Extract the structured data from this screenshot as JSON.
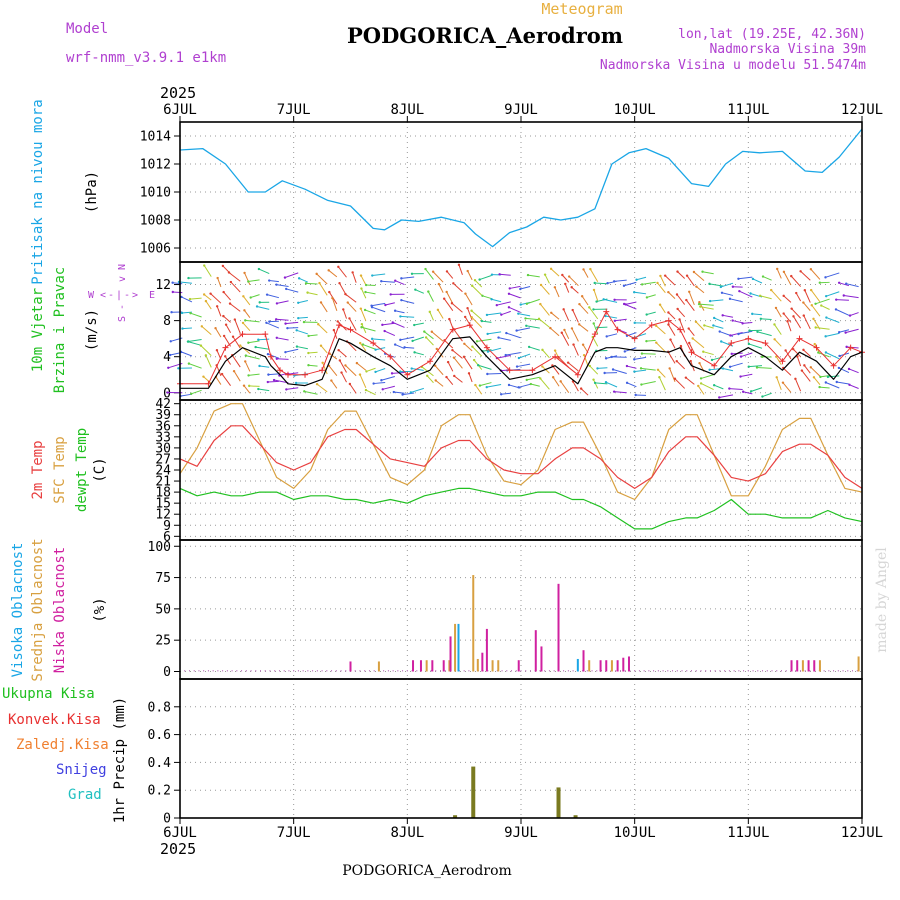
{
  "header": {
    "model_label": "Model",
    "model_name": "wrf-nmm_v3.9.1 e1km",
    "station": "PODGORICA_Aerodrom",
    "meteogram": "Meteogram",
    "lonlat": "lon,lat (19.25E, 42.36N)",
    "elevation": "Nadmorska Visina 39m",
    "model_elevation": "Nadmorska Visina u modelu 51.5474m"
  },
  "footer": {
    "station": "PODGORICA_Aerodrom",
    "signature": "made by Angel"
  },
  "time_axis": {
    "year": "2025",
    "ticks": [
      "6JUL",
      "7JUL",
      "8JUL",
      "9JUL",
      "10JUL",
      "11JUL",
      "12JUL"
    ],
    "range_days": [
      0,
      6
    ]
  },
  "colors": {
    "pressure": "#1aa6e6",
    "wind_black": "#000000",
    "wind_gust": "#e83030",
    "t2m": "#e84040",
    "tsfc": "#d8a040",
    "dew": "#20c020",
    "cloud_high": "#1aa6e6",
    "cloud_mid": "#d8a040",
    "cloud_low": "#d020a0",
    "precip_total": "#20c020",
    "precip_conv": "#e83030",
    "precip_strat": "#f08030",
    "snow": "#4040e0",
    "hail": "#20c0c0",
    "precip_bar": "#7a7a20"
  },
  "legend": {
    "pressure": "Pritisak na nivou mora",
    "pressure_unit": "(hPa)",
    "wind_1": "10m Vjetar",
    "wind_2": "Brzina i Pravac",
    "wind_unit": "(m/s)",
    "compass": {
      "n": "N",
      "e": "E",
      "w": "W",
      "s": "S",
      "arrow_l": "<",
      "arrow_r": ">",
      "arrow_d": "v",
      "dash": "-",
      "bar": "|",
      "minus1": "-",
      "minus2": "-",
      "s_glyph": "S"
    },
    "temp_2m": "2m Temp",
    "temp_sfc": "SFC Temp",
    "temp_dew": "dewpt Temp",
    "temp_unit": "(C)",
    "cloud_high": "Visoka Oblacnost",
    "cloud_mid": "Srednja Oblacnost",
    "cloud_low": "Niska Oblacnost",
    "cloud_unit": "(%)",
    "precip_total": "Ukupna Kisa",
    "precip_conv": "Konvek.Kisa",
    "precip_strat": "Zaledj.Kisa",
    "precip_snow": "Snijeg",
    "precip_hail": "Grad",
    "precip_unit": "1hr Precip (mm)"
  },
  "chart_data": [
    {
      "type": "line",
      "name": "pressure",
      "ylabel": "(hPa)",
      "ylim": [
        1005,
        1015
      ],
      "yticks": [
        1006,
        1008,
        1010,
        1012,
        1014
      ],
      "x": [
        0,
        0.2,
        0.4,
        0.6,
        0.75,
        0.9,
        1.1,
        1.3,
        1.5,
        1.7,
        1.8,
        1.95,
        2.1,
        2.3,
        2.5,
        2.6,
        2.75,
        2.9,
        3.05,
        3.2,
        3.35,
        3.5,
        3.65,
        3.8,
        3.95,
        4.1,
        4.3,
        4.5,
        4.65,
        4.8,
        4.95,
        5.1,
        5.3,
        5.5,
        5.65,
        5.8,
        6.0
      ],
      "values": [
        1013.0,
        1013.1,
        1012.0,
        1010.0,
        1010.0,
        1010.8,
        1010.2,
        1009.4,
        1009.0,
        1007.4,
        1007.3,
        1008.0,
        1007.9,
        1008.2,
        1007.8,
        1007.0,
        1006.1,
        1007.1,
        1007.5,
        1008.2,
        1008.0,
        1008.2,
        1008.8,
        1012.0,
        1012.8,
        1013.1,
        1012.4,
        1010.6,
        1010.4,
        1012.0,
        1012.9,
        1012.8,
        1012.9,
        1011.5,
        1011.4,
        1012.5,
        1014.5
      ]
    },
    {
      "type": "line",
      "name": "wind",
      "ylabel": "(m/s)",
      "ylim": [
        -0.8,
        14.5
      ],
      "yticks": [
        0,
        4,
        8,
        12
      ],
      "x": [
        0,
        0.25,
        0.4,
        0.55,
        0.75,
        0.8,
        0.88,
        0.95,
        1.1,
        1.25,
        1.4,
        1.5,
        1.7,
        1.85,
        2.0,
        2.2,
        2.4,
        2.55,
        2.7,
        2.9,
        3.1,
        3.3,
        3.5,
        3.65,
        3.75,
        3.85,
        4.0,
        4.15,
        4.3,
        4.4,
        4.5,
        4.7,
        4.85,
        5.0,
        5.15,
        5.3,
        5.45,
        5.6,
        5.75,
        5.9,
        6.0
      ],
      "values": [
        0.5,
        0.5,
        3.5,
        5.0,
        4.0,
        3.0,
        2.0,
        1.0,
        0.8,
        1.5,
        6.0,
        5.5,
        4.0,
        3.0,
        1.5,
        2.5,
        6.0,
        6.2,
        4.0,
        1.5,
        2.0,
        3.0,
        1.0,
        4.5,
        5.0,
        5.0,
        4.7,
        4.7,
        4.5,
        5.0,
        3.0,
        2.0,
        4.0,
        5.0,
        4.0,
        2.5,
        4.5,
        3.5,
        1.5,
        4.0,
        4.5
      ],
      "gust": [
        1.0,
        1.0,
        5.0,
        6.5,
        6.5,
        4.0,
        2.5,
        2.0,
        2.0,
        2.5,
        7.5,
        7.0,
        5.5,
        4.0,
        2.0,
        3.5,
        7.0,
        7.5,
        5.0,
        2.5,
        2.5,
        4.0,
        2.0,
        6.5,
        9.0,
        7.0,
        6.0,
        7.5,
        8.0,
        7.0,
        4.5,
        3.0,
        5.5,
        6.0,
        5.5,
        3.5,
        6.0,
        5.0,
        3.0,
        5.0,
        4.5
      ]
    },
    {
      "type": "line",
      "name": "temperature",
      "ylabel": "(C)",
      "ylim": [
        5,
        43
      ],
      "yticks": [
        6,
        9,
        12,
        15,
        18,
        21,
        24,
        27,
        30,
        33,
        36,
        39,
        42
      ],
      "x": [
        0,
        0.15,
        0.3,
        0.45,
        0.55,
        0.7,
        0.85,
        1.0,
        1.15,
        1.3,
        1.45,
        1.55,
        1.7,
        1.85,
        2.0,
        2.15,
        2.3,
        2.45,
        2.55,
        2.7,
        2.85,
        3.0,
        3.15,
        3.3,
        3.45,
        3.55,
        3.7,
        3.85,
        4.0,
        4.15,
        4.3,
        4.45,
        4.55,
        4.7,
        4.85,
        5.0,
        5.15,
        5.3,
        5.45,
        5.55,
        5.7,
        5.85,
        6.0
      ],
      "t2m": [
        27,
        25,
        32,
        36,
        36,
        31,
        26,
        24,
        26,
        33,
        35,
        35,
        31,
        27,
        26,
        25,
        30,
        32,
        32,
        27,
        24,
        23,
        23,
        27,
        30,
        30,
        27,
        22,
        19,
        22,
        29,
        33,
        33,
        28,
        22,
        21,
        23,
        29,
        31,
        31,
        28,
        22,
        19
      ],
      "tsfc": [
        23,
        30,
        40,
        42,
        42,
        32,
        22,
        19,
        24,
        35,
        40,
        40,
        31,
        22,
        20,
        24,
        36,
        39,
        39,
        28,
        21,
        20,
        24,
        35,
        37,
        37,
        28,
        18,
        16,
        22,
        35,
        39,
        39,
        28,
        17,
        17,
        25,
        35,
        38,
        38,
        28,
        19,
        18
      ],
      "dew": [
        19,
        17,
        18,
        17,
        17,
        18,
        18,
        16,
        17,
        17,
        16,
        16,
        15,
        16,
        15,
        17,
        18,
        19,
        19,
        18,
        17,
        17,
        18,
        18,
        16,
        16,
        14,
        11,
        8,
        8,
        10,
        11,
        11,
        13,
        16,
        12,
        12,
        11,
        11,
        11,
        13,
        11,
        10
      ]
    },
    {
      "type": "bar",
      "name": "clouds",
      "ylabel": "(%)",
      "ylim": [
        -6,
        105
      ],
      "yticks": [
        0,
        25,
        50,
        75,
        100
      ],
      "bars": [
        {
          "x": 1.5,
          "series": "low",
          "value": 8
        },
        {
          "x": 1.75,
          "series": "mid",
          "value": 8
        },
        {
          "x": 2.05,
          "series": "low",
          "value": 9
        },
        {
          "x": 2.12,
          "series": "low",
          "value": 9
        },
        {
          "x": 2.17,
          "series": "mid",
          "value": 9
        },
        {
          "x": 2.22,
          "series": "low",
          "value": 9
        },
        {
          "x": 2.32,
          "series": "low",
          "value": 9
        },
        {
          "x": 2.37,
          "series": "mid",
          "value": 9
        },
        {
          "x": 2.38,
          "series": "low",
          "value": 28
        },
        {
          "x": 2.42,
          "series": "mid",
          "value": 38
        },
        {
          "x": 2.45,
          "series": "high",
          "value": 38
        },
        {
          "x": 2.58,
          "series": "mid",
          "value": 77
        },
        {
          "x": 2.62,
          "series": "mid",
          "value": 10
        },
        {
          "x": 2.66,
          "series": "low",
          "value": 15
        },
        {
          "x": 2.7,
          "series": "low",
          "value": 34
        },
        {
          "x": 2.75,
          "series": "mid",
          "value": 9
        },
        {
          "x": 2.8,
          "series": "mid",
          "value": 9
        },
        {
          "x": 2.98,
          "series": "low",
          "value": 9
        },
        {
          "x": 3.13,
          "series": "low",
          "value": 33
        },
        {
          "x": 3.18,
          "series": "low",
          "value": 20
        },
        {
          "x": 3.33,
          "series": "low",
          "value": 70
        },
        {
          "x": 3.5,
          "series": "high",
          "value": 10
        },
        {
          "x": 3.55,
          "series": "low",
          "value": 17
        },
        {
          "x": 3.6,
          "series": "mid",
          "value": 9
        },
        {
          "x": 3.7,
          "series": "low",
          "value": 9
        },
        {
          "x": 3.75,
          "series": "low",
          "value": 9
        },
        {
          "x": 3.8,
          "series": "mid",
          "value": 9
        },
        {
          "x": 3.85,
          "series": "low",
          "value": 9
        },
        {
          "x": 3.9,
          "series": "low",
          "value": 11
        },
        {
          "x": 3.95,
          "series": "low",
          "value": 12
        },
        {
          "x": 5.38,
          "series": "low",
          "value": 9
        },
        {
          "x": 5.43,
          "series": "low",
          "value": 9
        },
        {
          "x": 5.48,
          "series": "mid",
          "value": 9
        },
        {
          "x": 5.53,
          "series": "low",
          "value": 9
        },
        {
          "x": 5.58,
          "series": "low",
          "value": 9
        },
        {
          "x": 5.63,
          "series": "mid",
          "value": 9
        },
        {
          "x": 5.97,
          "series": "mid",
          "value": 12
        }
      ]
    },
    {
      "type": "bar",
      "name": "precip",
      "ylabel": "1hr Precip (mm)",
      "ylim": [
        0,
        1.0
      ],
      "yticks": [
        0,
        0.2,
        0.4,
        0.6,
        0.8
      ],
      "bars": [
        {
          "x": 2.42,
          "value": 0.02
        },
        {
          "x": 2.58,
          "value": 0.37
        },
        {
          "x": 3.33,
          "value": 0.22
        },
        {
          "x": 3.48,
          "value": 0.02
        }
      ]
    }
  ]
}
